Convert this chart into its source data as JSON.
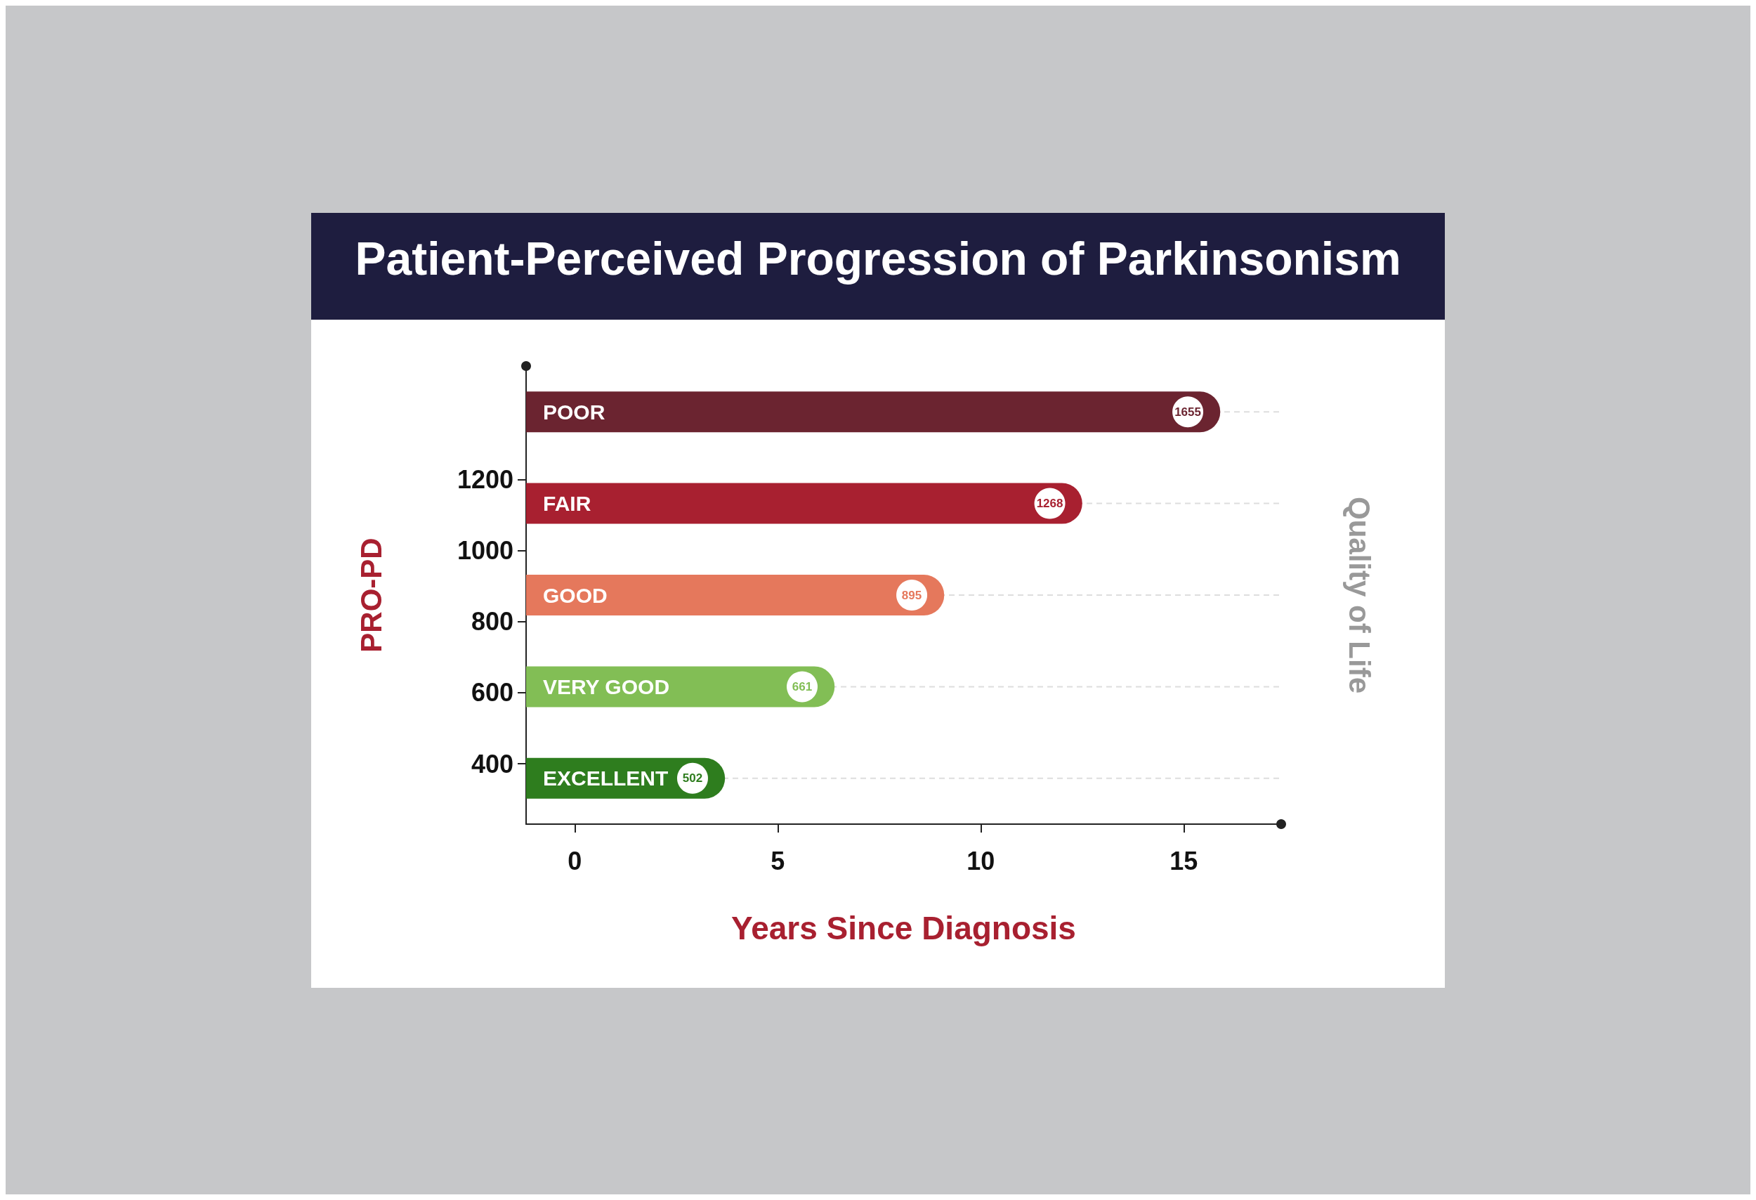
{
  "chart_data": {
    "type": "bar",
    "orientation": "horizontal",
    "title": "Patient-Perceived Progression of Parkinsonism",
    "xlabel": "Years Since Diagnosis",
    "ylabel": "Quality of Life",
    "y2label": "PRO-PD",
    "categories": [
      "POOR",
      "FAIR",
      "GOOD",
      "VERY GOOD",
      "EXCELLENT"
    ],
    "base": [
      -1.2,
      -1.2,
      -1.2,
      -1.2,
      -1.2
    ],
    "values": [
      17.1,
      13.7,
      10.3,
      7.6,
      4.9
    ],
    "colors": [
      "#6b2430",
      "#a82030",
      "#e5785c",
      "#82be55",
      "#2e7d1e"
    ],
    "annotations": [
      {
        "text": "1655",
        "x": 15.1,
        "y": "POOR"
      },
      {
        "text": "1268",
        "x": 11.7,
        "y": "FAIR"
      },
      {
        "text": "895",
        "x": 8.3,
        "y": "GOOD"
      },
      {
        "text": "661",
        "x": 5.6,
        "y": "VERY GOOD"
      },
      {
        "text": "502",
        "x": 2.9,
        "y": "EXCELLENT"
      }
    ],
    "xlim": [
      -1.2,
      17.4
    ],
    "xticks": [
      0,
      5,
      10,
      15
    ],
    "y2lim": [
      230,
      1520
    ],
    "y2ticks": [
      400,
      600,
      800,
      1000,
      1200
    ],
    "ref_lines": [
      {
        "axis": "y",
        "value": "POOR",
        "color": "#dddddd",
        "line_style": "dashed"
      },
      {
        "axis": "y",
        "value": "FAIR",
        "color": "#dddddd",
        "line_style": "dashed"
      },
      {
        "axis": "y",
        "value": "GOOD",
        "color": "#dddddd",
        "line_style": "dashed"
      },
      {
        "axis": "y",
        "value": "VERY GOOD",
        "color": "#dddddd",
        "line_style": "dashed"
      },
      {
        "axis": "y",
        "value": "EXCELLENT",
        "color": "#dddddd",
        "line_style": "dashed"
      }
    ]
  }
}
